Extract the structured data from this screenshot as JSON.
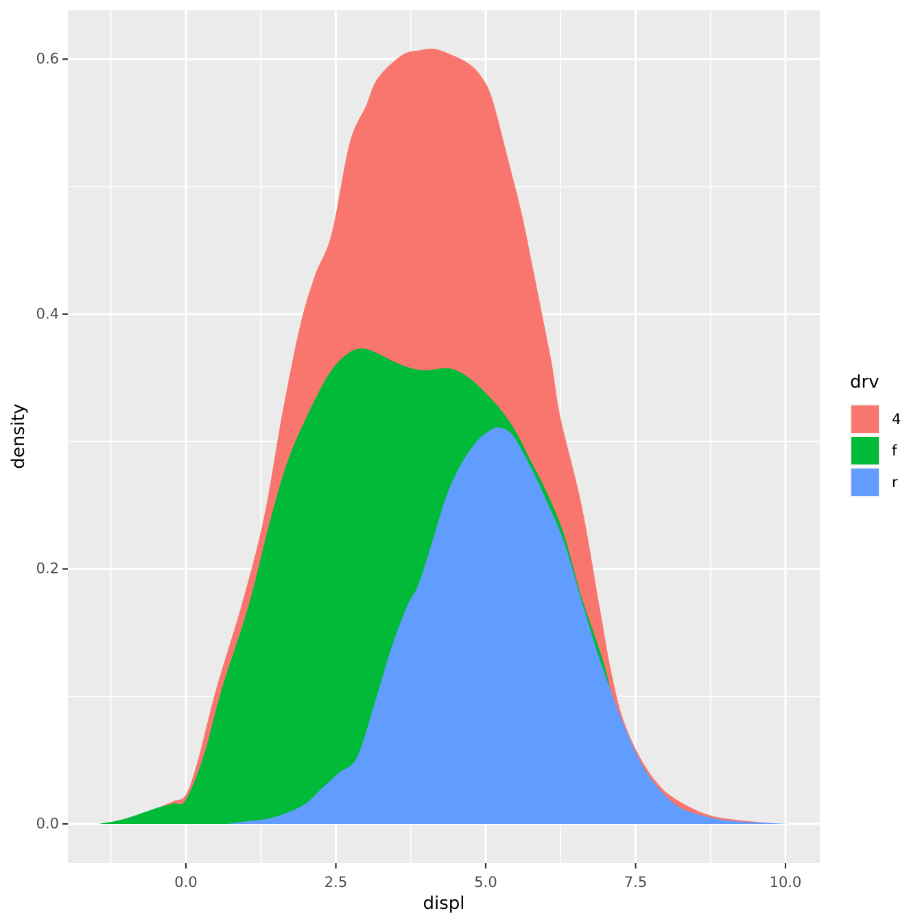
{
  "figure": {
    "background": "#FFFFFF"
  },
  "panel": {
    "background": "#EBEBEB",
    "grid_color": "#FFFFFF",
    "tick_mark_color": "#333333",
    "tick_label_color": "#4D4D4D"
  },
  "axes": {
    "x": {
      "title": "displ",
      "tick_labels": [
        "0.0",
        "2.5",
        "5.0",
        "7.5",
        "10.0"
      ],
      "tick_values": [
        0,
        2.5,
        5,
        7.5,
        10
      ]
    },
    "y": {
      "title": "density",
      "tick_labels": [
        "0.0",
        "0.2",
        "0.4",
        "0.6"
      ],
      "tick_values": [
        0,
        0.2,
        0.4,
        0.6
      ]
    }
  },
  "legend": {
    "title": "drv",
    "key_background": "#F2F2F2",
    "position": "right",
    "items": [
      {
        "label": "4",
        "color": "#F8766D"
      },
      {
        "label": "f",
        "color": "#00BA38"
      },
      {
        "label": "r",
        "color": "#619CFF"
      }
    ]
  },
  "chart_data": {
    "type": "area",
    "title": "",
    "xlabel": "displ",
    "ylabel": "density",
    "x_range": [
      -1.96,
      10.57
    ],
    "y_range": [
      0,
      0.637
    ],
    "x_ticks": [
      0,
      2.5,
      5,
      7.5,
      10
    ],
    "y_ticks": [
      0,
      0.2,
      0.4,
      0.6
    ],
    "grid": true,
    "legend_title": "drv",
    "legend_position": "right",
    "fill_opacity": 1,
    "series": [
      {
        "name": "4",
        "color": "#F8766D",
        "peak": [
          4.15,
          0.608
        ],
        "points": [
          [
            -1.42,
            0
          ],
          [
            -1.2,
            0.0015
          ],
          [
            -0.95,
            0.004
          ],
          [
            -0.7,
            0.008
          ],
          [
            -0.45,
            0.013
          ],
          [
            -0.2,
            0.018
          ],
          [
            0,
            0.023
          ],
          [
            0.2,
            0.05
          ],
          [
            0.5,
            0.105
          ],
          [
            0.93,
            0.172
          ],
          [
            1.3,
            0.24
          ],
          [
            1.6,
            0.32
          ],
          [
            1.9,
            0.39
          ],
          [
            2.15,
            0.43
          ],
          [
            2.43,
            0.463
          ],
          [
            2.73,
            0.534
          ],
          [
            3.0,
            0.563
          ],
          [
            3.2,
            0.585
          ],
          [
            3.6,
            0.603
          ],
          [
            3.9,
            0.607
          ],
          [
            4.15,
            0.608
          ],
          [
            4.45,
            0.603
          ],
          [
            4.7,
            0.597
          ],
          [
            4.9,
            0.588
          ],
          [
            5.1,
            0.57
          ],
          [
            5.37,
            0.522
          ],
          [
            5.6,
            0.479
          ],
          [
            5.77,
            0.44
          ],
          [
            5.94,
            0.4
          ],
          [
            6.11,
            0.359
          ],
          [
            6.25,
            0.318
          ],
          [
            6.6,
            0.25
          ],
          [
            6.9,
            0.17
          ],
          [
            7.1,
            0.118
          ],
          [
            7.3,
            0.081
          ],
          [
            7.6,
            0.05
          ],
          [
            7.9,
            0.03
          ],
          [
            8.15,
            0.02
          ],
          [
            8.5,
            0.011
          ],
          [
            8.8,
            0.006
          ],
          [
            9.2,
            0.003
          ],
          [
            9.55,
            0.0015
          ],
          [
            9.9,
            0
          ]
        ]
      },
      {
        "name": "f",
        "color": "#00BA38",
        "peak": [
          2.95,
          0.373
        ],
        "points": [
          [
            -1.45,
            0
          ],
          [
            -1.2,
            0.002
          ],
          [
            -0.95,
            0.005
          ],
          [
            -0.7,
            0.009
          ],
          [
            -0.45,
            0.013
          ],
          [
            -0.2,
            0.016
          ],
          [
            0,
            0.019
          ],
          [
            0.3,
            0.054
          ],
          [
            0.6,
            0.106
          ],
          [
            1.05,
            0.172
          ],
          [
            1.4,
            0.237
          ],
          [
            1.7,
            0.285
          ],
          [
            2.05,
            0.323
          ],
          [
            2.4,
            0.354
          ],
          [
            2.7,
            0.369
          ],
          [
            2.95,
            0.373
          ],
          [
            3.2,
            0.369
          ],
          [
            3.5,
            0.362
          ],
          [
            3.8,
            0.357
          ],
          [
            4.05,
            0.356
          ],
          [
            4.3,
            0.3575
          ],
          [
            4.5,
            0.356
          ],
          [
            4.75,
            0.349
          ],
          [
            5.0,
            0.338
          ],
          [
            5.25,
            0.325
          ],
          [
            5.5,
            0.308
          ],
          [
            5.75,
            0.285
          ],
          [
            6.0,
            0.262
          ],
          [
            6.3,
            0.228
          ],
          [
            6.6,
            0.178
          ],
          [
            7.0,
            0.121
          ],
          [
            7.25,
            0.065
          ],
          [
            7.5,
            0.02
          ],
          [
            7.75,
            0
          ]
        ]
      },
      {
        "name": "r",
        "color": "#619CFF",
        "peak": [
          5.22,
          0.311
        ],
        "points": [
          [
            0.7,
            0
          ],
          [
            1.0,
            0.002
          ],
          [
            1.36,
            0.004
          ],
          [
            1.7,
            0.009
          ],
          [
            2.0,
            0.016
          ],
          [
            2.25,
            0.027
          ],
          [
            2.55,
            0.04
          ],
          [
            2.85,
            0.052
          ],
          [
            3.15,
            0.095
          ],
          [
            3.44,
            0.14
          ],
          [
            3.7,
            0.172
          ],
          [
            3.88,
            0.188
          ],
          [
            4.1,
            0.22
          ],
          [
            4.35,
            0.258
          ],
          [
            4.6,
            0.283
          ],
          [
            4.85,
            0.3
          ],
          [
            5.05,
            0.308
          ],
          [
            5.22,
            0.311
          ],
          [
            5.45,
            0.305
          ],
          [
            5.75,
            0.28
          ],
          [
            6.0,
            0.255
          ],
          [
            6.3,
            0.222
          ],
          [
            6.6,
            0.175
          ],
          [
            6.86,
            0.135
          ],
          [
            7.1,
            0.103
          ],
          [
            7.3,
            0.078
          ],
          [
            7.6,
            0.047
          ],
          [
            7.9,
            0.027
          ],
          [
            8.2,
            0.014
          ],
          [
            8.5,
            0.008
          ],
          [
            8.85,
            0.004
          ],
          [
            9.2,
            0.002
          ],
          [
            9.6,
            0.001
          ],
          [
            10.05,
            0
          ]
        ]
      }
    ]
  }
}
